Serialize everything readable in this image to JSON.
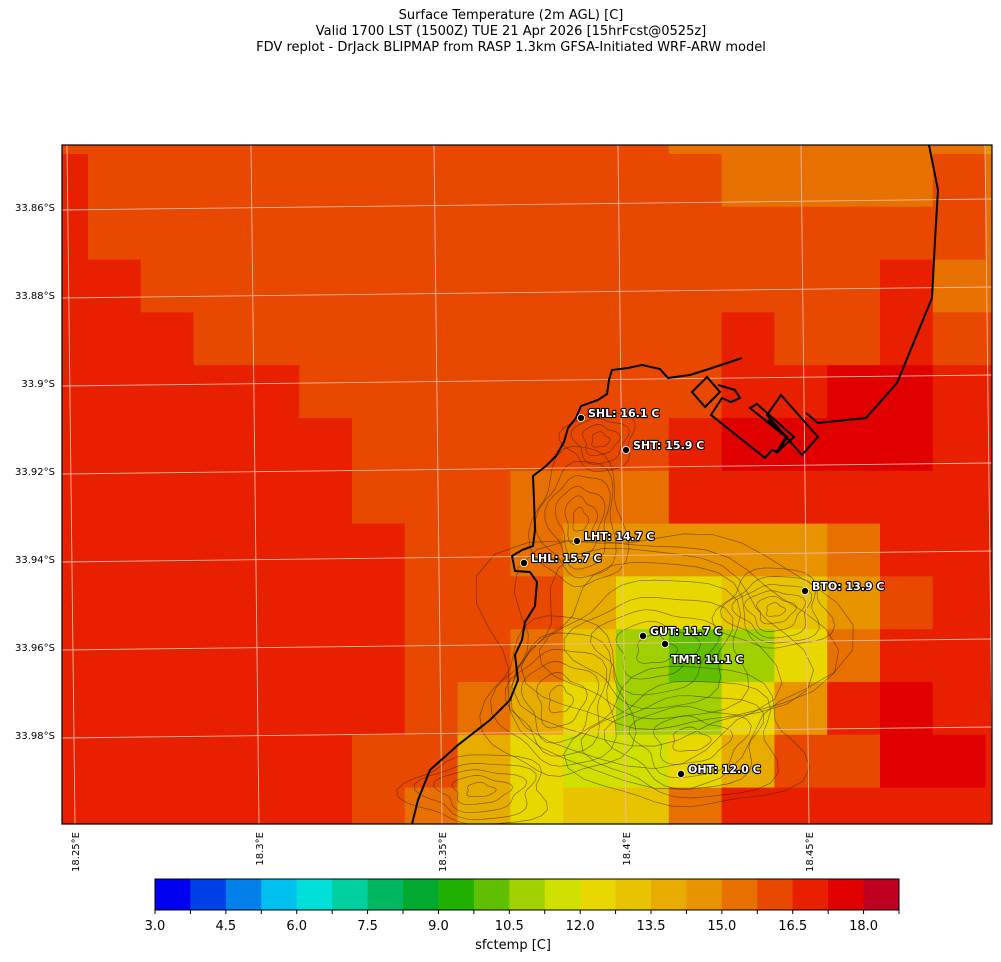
{
  "title": {
    "line1": "Surface Temperature (2m AGL) [C]",
    "line2": "Valid 1700 LST (1500Z) TUE 21 Apr 2026 [15hrFcst@0525z]",
    "line3": "FDV replot - DrJack BLIPMAP from RASP 1.3km GFSA-Initiated WRF-ARW model"
  },
  "map": {
    "lat_labels": [
      "33.86°S",
      "33.88°S",
      "33.9°S",
      "33.92°S",
      "33.94°S",
      "33.96°S",
      "33.98°S"
    ],
    "lon_labels": [
      "18.25°E",
      "18.3°E",
      "18.35°E",
      "18.4°E",
      "18.45°E"
    ],
    "gridline_color": "#f5b8a8",
    "coastline_color": "#000000",
    "temperature_field_c": [
      [
        16.1,
        16.1,
        16.1,
        16.1,
        16.1,
        16.1,
        16.1,
        16.1,
        16.1,
        16.1,
        16.1,
        16.1,
        15.4,
        15.4,
        15.4,
        15.4,
        15.4,
        15.4,
        14.6
      ],
      [
        16.9,
        16.1,
        16.1,
        16.1,
        16.1,
        16.1,
        16.1,
        16.1,
        16.1,
        16.1,
        16.1,
        16.1,
        16.1,
        15.4,
        15.4,
        15.4,
        15.4,
        16.1,
        15.4
      ],
      [
        16.9,
        16.1,
        16.1,
        16.1,
        16.1,
        16.1,
        16.1,
        16.1,
        16.1,
        16.1,
        16.1,
        16.1,
        16.1,
        16.1,
        16.1,
        16.1,
        16.1,
        16.1,
        15.4
      ],
      [
        16.9,
        16.9,
        16.1,
        16.1,
        16.1,
        16.1,
        16.1,
        16.1,
        16.1,
        16.1,
        16.1,
        16.1,
        16.1,
        16.1,
        16.1,
        16.1,
        16.9,
        15.4,
        15.4
      ],
      [
        16.9,
        16.9,
        16.9,
        16.1,
        16.1,
        16.1,
        16.1,
        16.1,
        16.1,
        16.1,
        16.1,
        16.1,
        16.1,
        16.9,
        16.1,
        16.1,
        16.9,
        16.1,
        16.1
      ],
      [
        16.9,
        16.9,
        16.9,
        16.9,
        16.9,
        16.1,
        16.1,
        16.1,
        16.1,
        16.1,
        16.1,
        16.1,
        16.1,
        16.9,
        16.9,
        17.6,
        17.6,
        16.9,
        16.9
      ],
      [
        16.9,
        16.9,
        16.9,
        16.9,
        16.9,
        16.9,
        16.1,
        16.1,
        16.1,
        16.1,
        16.1,
        16.1,
        16.9,
        17.6,
        17.6,
        17.6,
        17.6,
        16.9,
        16.9
      ],
      [
        16.9,
        16.9,
        16.9,
        16.9,
        16.9,
        16.9,
        16.1,
        16.1,
        16.1,
        15.4,
        15.4,
        15.4,
        16.9,
        16.9,
        16.9,
        16.9,
        16.9,
        16.9,
        16.9
      ],
      [
        16.9,
        16.9,
        16.9,
        16.9,
        16.9,
        16.9,
        16.9,
        16.1,
        16.1,
        15.4,
        14.6,
        14.6,
        14.6,
        14.6,
        14.6,
        15.4,
        16.9,
        16.9,
        16.9
      ],
      [
        16.9,
        16.9,
        16.9,
        16.9,
        16.9,
        16.9,
        16.9,
        16.1,
        16.1,
        16.1,
        13.9,
        12.4,
        12.4,
        13.1,
        13.1,
        14.6,
        16.1,
        16.9,
        16.9
      ],
      [
        16.9,
        16.9,
        16.9,
        16.9,
        16.9,
        16.9,
        16.9,
        16.1,
        16.1,
        15.4,
        13.1,
        10.9,
        10.1,
        10.9,
        12.4,
        15.4,
        16.9,
        16.9,
        16.9
      ],
      [
        16.9,
        16.9,
        16.9,
        16.9,
        16.9,
        16.9,
        16.9,
        16.1,
        15.4,
        13.9,
        12.4,
        10.9,
        10.9,
        12.4,
        14.6,
        16.9,
        17.6,
        16.9,
        16.9
      ],
      [
        16.9,
        16.9,
        16.9,
        16.9,
        16.9,
        16.9,
        16.1,
        16.1,
        13.9,
        12.4,
        11.6,
        11.6,
        12.4,
        13.9,
        16.1,
        16.1,
        17.6,
        17.6,
        16.9
      ],
      [
        16.9,
        16.9,
        16.9,
        16.9,
        16.9,
        16.9,
        16.1,
        15.4,
        13.9,
        12.4,
        13.1,
        13.1,
        15.4,
        16.9,
        16.9,
        16.9,
        16.9,
        16.9,
        16.9
      ]
    ],
    "stations": [
      {
        "id": "SHL",
        "label": "SHL: 16.1 C"
      },
      {
        "id": "SHT",
        "label": "SHT: 15.9 C"
      },
      {
        "id": "LHT",
        "label": "LHT: 14.7 C"
      },
      {
        "id": "LHL",
        "label": "LHL: 15.7 C"
      },
      {
        "id": "BTO",
        "label": "BTO: 13.9 C"
      },
      {
        "id": "GUT",
        "label": "GUT: 11.7 C"
      },
      {
        "id": "TMT",
        "label": "TMT: 11.1 C"
      },
      {
        "id": "OHT",
        "label": "OHT: 12.0 C"
      }
    ]
  },
  "colorbar": {
    "label": "sfctemp [C]",
    "min": 3.0,
    "step": 0.75,
    "tick_labels": [
      "3.0",
      "4.5",
      "6.0",
      "7.5",
      "9.0",
      "10.5",
      "12.0",
      "13.5",
      "15.0",
      "16.5",
      "18.0"
    ],
    "colors": [
      "#0000f0",
      "#0040e8",
      "#0080e8",
      "#00c0f0",
      "#00e0d8",
      "#00d0a0",
      "#00b860",
      "#00a830",
      "#20b000",
      "#60c000",
      "#a0d000",
      "#d0e000",
      "#e8d800",
      "#e8c400",
      "#e8ac00",
      "#e89400",
      "#e87000",
      "#e84800",
      "#e82000",
      "#e00000",
      "#c00020"
    ]
  }
}
